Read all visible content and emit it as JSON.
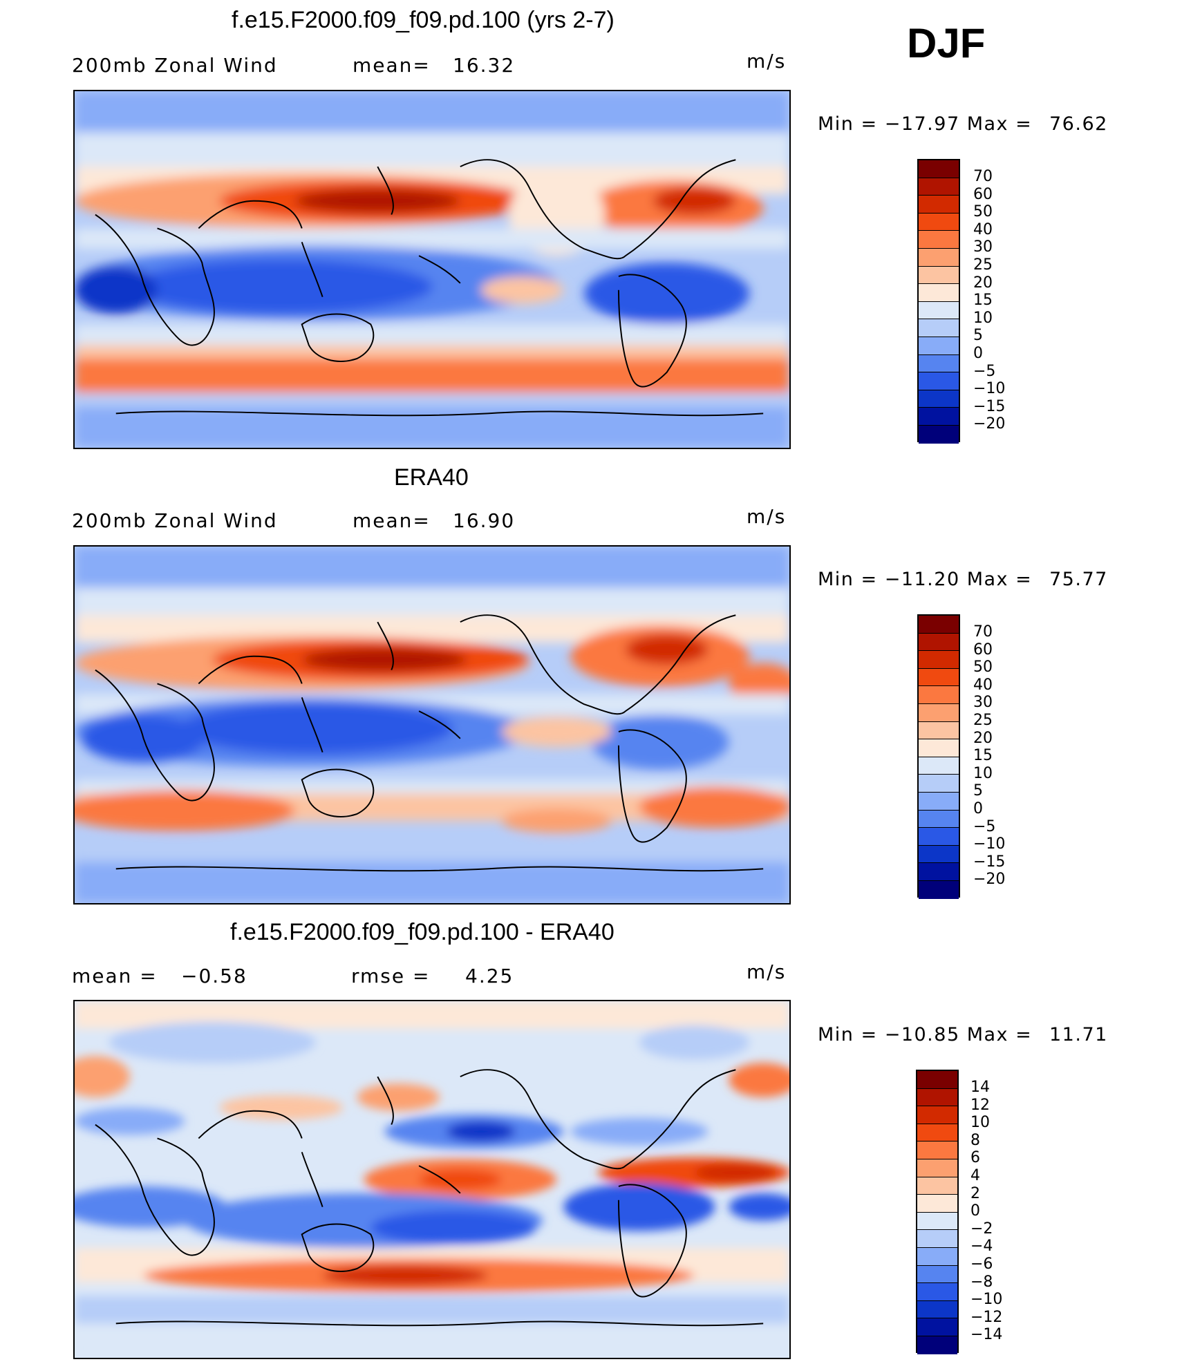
{
  "season": "DJF",
  "panels": [
    {
      "title": "f.e15.F2000.f09_f09.pd.100 (yrs 2-7)",
      "left_label": "200mb Zonal Wind",
      "mid_label": "mean=",
      "mid_value": "16.32",
      "units": "m/s",
      "min_label": "Min = −17.97 Max = ",
      "max_value": "76.62",
      "colorbar": [
        "70",
        "60",
        "50",
        "40",
        "30",
        "25",
        "20",
        "15",
        "10",
        "5",
        "0",
        "−5",
        "−10",
        "−15",
        "−20"
      ]
    },
    {
      "title": "ERA40",
      "left_label": "200mb Zonal Wind",
      "mid_label": "mean=",
      "mid_value": "16.90",
      "units": "m/s",
      "min_label": "Min = −11.20 Max = ",
      "max_value": "75.77",
      "colorbar": [
        "70",
        "60",
        "50",
        "40",
        "30",
        "25",
        "20",
        "15",
        "10",
        "5",
        "0",
        "−5",
        "−10",
        "−15",
        "−20"
      ]
    },
    {
      "title": "f.e15.F2000.f09_f09.pd.100 - ERA40",
      "left_label": "mean =",
      "left_value": "−0.58",
      "mid_label": "rmse =",
      "mid_value": "4.25",
      "units": "m/s",
      "min_label": "Min = −10.85 Max = ",
      "max_value": "11.71",
      "colorbar": [
        "14",
        "12",
        "10",
        "8",
        "6",
        "4",
        "2",
        "0",
        "−2",
        "−4",
        "−6",
        "−8",
        "−10",
        "−12",
        "−14"
      ]
    }
  ],
  "colors": {
    "abs_scale": [
      "#7a0000",
      "#b01400",
      "#d22a00",
      "#f04a10",
      "#fb7840",
      "#fca070",
      "#fcc4a2",
      "#fde8d8",
      "#dce8f8",
      "#b6cdf8",
      "#88acf8",
      "#5684f0",
      "#2a58e6",
      "#0c36c8",
      "#0012a0",
      "#00007a"
    ],
    "diff_scale": [
      "#7a0000",
      "#b01400",
      "#d22a00",
      "#f04a10",
      "#fb7840",
      "#fca070",
      "#fcc4a2",
      "#fde8d8",
      "#dce8f8",
      "#b6cdf8",
      "#88acf8",
      "#5684f0",
      "#2a58e6",
      "#0c36c8",
      "#0012a0",
      "#00007a"
    ]
  }
}
